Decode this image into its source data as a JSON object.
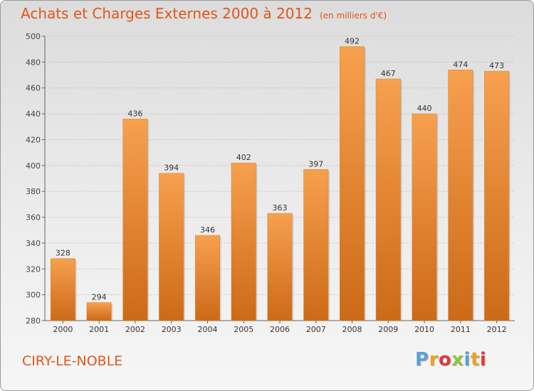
{
  "chart_data": {
    "type": "bar",
    "title": "Achats et Charges Externes 2000 à 2012",
    "subtitle": "(en milliers d'€)",
    "categories": [
      "2000",
      "2001",
      "2002",
      "2003",
      "2004",
      "2005",
      "2006",
      "2007",
      "2008",
      "2009",
      "2010",
      "2011",
      "2012"
    ],
    "values": [
      328,
      294,
      436,
      394,
      346,
      402,
      363,
      397,
      492,
      467,
      440,
      474,
      473
    ],
    "ylim": [
      280,
      500
    ],
    "yticks": [
      280,
      300,
      320,
      340,
      360,
      380,
      400,
      420,
      440,
      460,
      480,
      500
    ],
    "grid": true,
    "bar_color_top": "#f7a04e",
    "bar_color_bottom": "#cc6a18",
    "xlabel": "",
    "ylabel": ""
  },
  "footer": {
    "city": "CIRY-LE-NOBLE",
    "logo": "Proxiti",
    "logo_colors": [
      "#5aa0d8",
      "#f0a020",
      "#e03a3a",
      "#8cc63f",
      "#5aa0d8",
      "#f0a020",
      "#e03a3a"
    ]
  },
  "colors": {
    "accent": "#e2561a"
  }
}
